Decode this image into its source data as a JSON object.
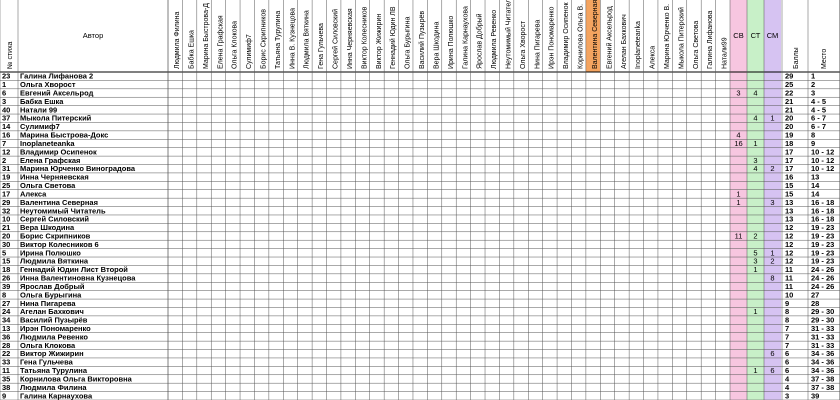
{
  "table": {
    "headers": {
      "num": "№ стиха",
      "author": "Автор",
      "sv": "СВ",
      "st": "СТ",
      "sm": "СМ",
      "points": "Баллы",
      "place": "Место"
    },
    "judges": [
      "Людмила Филина",
      "Бабка Ешка",
      "Марина Быстрова-Д",
      "Елена Графская",
      "Ольга Клокова",
      "Сулимиф7",
      "Борис Скрипников",
      "Татьяна Турулина",
      "Инна В. Кузнецова",
      "Людмила Вяткина",
      "Гена Гульчева",
      "Сергей Силовский",
      "Инна Черняевская",
      "Виктор Колесников",
      "Виктор Жижирин",
      "Геннадий Юдин ЛВ",
      "Ольга Бурыгина",
      "Василий Пузырёв",
      "Вера Шкодина",
      "Ирина Полюшко",
      "Галина Карнаухова",
      "Ярослав Добрый",
      "Людмила Ревенко",
      "Неутомимый Читатель",
      "Ольга Хворост",
      "Нина Пигарева",
      "Ирэн Пономаренко",
      "Владимир Осипенок",
      "Корнилова Ольга В.",
      "Валентина Северная",
      "Евгений Аксельрод",
      "Агелан Бахкович",
      "Inoplaneteanka",
      "Алекса",
      "Марина Юрченко В.",
      "Мыкола Питерский",
      "Ольга Светова",
      "Галина Лифанова",
      "Натали99"
    ],
    "rows": [
      {
        "num": 23,
        "author": "Галина Лифанова 2",
        "sv": null,
        "st": null,
        "sm": null,
        "points": 29,
        "place": "1"
      },
      {
        "num": 1,
        "author": "Ольга Хворост",
        "sv": null,
        "st": null,
        "sm": null,
        "points": 25,
        "place": "2"
      },
      {
        "num": 6,
        "author": "Евгений Аксельрод",
        "sv": 3,
        "st": 4,
        "sm": null,
        "points": 22,
        "place": "3"
      },
      {
        "num": 3,
        "author": "Бабка Ешка",
        "sv": null,
        "st": null,
        "sm": null,
        "points": 21,
        "place": "4 - 5"
      },
      {
        "num": 40,
        "author": "Натали 99",
        "sv": null,
        "st": null,
        "sm": null,
        "points": 21,
        "place": "4 - 5"
      },
      {
        "num": 37,
        "author": "Мыкола Питерский",
        "sv": null,
        "st": 4,
        "sm": 1,
        "points": 20,
        "place": "6 - 7"
      },
      {
        "num": 14,
        "author": "Сулимиф7",
        "sv": null,
        "st": null,
        "sm": null,
        "points": 20,
        "place": "6 - 7"
      },
      {
        "num": 16,
        "author": "Марина Быстрова-Докс",
        "sv": 4,
        "st": null,
        "sm": null,
        "points": 19,
        "place": "8"
      },
      {
        "num": 7,
        "author": "Inoplaneteanka",
        "sv": 16,
        "st": 1,
        "sm": null,
        "points": 18,
        "place": "9"
      },
      {
        "num": 12,
        "author": "Владимир Осипенок",
        "sv": null,
        "st": null,
        "sm": null,
        "points": 17,
        "place": "10 - 12"
      },
      {
        "num": 2,
        "author": "Елена Графская",
        "sv": null,
        "st": 3,
        "sm": null,
        "points": 17,
        "place": "10 - 12"
      },
      {
        "num": 31,
        "author": "Марина Юрченко Виноградова",
        "sv": null,
        "st": 4,
        "sm": 2,
        "points": 17,
        "place": "10 - 12"
      },
      {
        "num": 19,
        "author": "Инна Черняевская",
        "sv": null,
        "st": null,
        "sm": null,
        "points": 16,
        "place": "13"
      },
      {
        "num": 25,
        "author": "Ольга Светова",
        "sv": null,
        "st": null,
        "sm": null,
        "points": 15,
        "place": "14"
      },
      {
        "num": 17,
        "author": "Алекса",
        "sv": 1,
        "st": null,
        "sm": null,
        "points": 15,
        "place": "14"
      },
      {
        "num": 29,
        "author": "Валентина Северная",
        "sv": 1,
        "st": null,
        "sm": 3,
        "points": 13,
        "place": "16 - 18"
      },
      {
        "num": 32,
        "author": "Неутомимый Читатель",
        "sv": null,
        "st": null,
        "sm": null,
        "points": 13,
        "place": "16 - 18"
      },
      {
        "num": 10,
        "author": "Сергей Силовский",
        "sv": null,
        "st": null,
        "sm": null,
        "points": 13,
        "place": "16 - 18"
      },
      {
        "num": 21,
        "author": "Вера Шкодина",
        "sv": null,
        "st": null,
        "sm": null,
        "points": 12,
        "place": "19 - 23"
      },
      {
        "num": 20,
        "author": "Борис Скрипников",
        "sv": 11,
        "st": 2,
        "sm": null,
        "points": 12,
        "place": "19 - 23"
      },
      {
        "num": 30,
        "author": "Виктор Колесников 6",
        "sv": null,
        "st": null,
        "sm": null,
        "points": 12,
        "place": "19 - 23"
      },
      {
        "num": 5,
        "author": "Ирина Полюшко",
        "sv": null,
        "st": 5,
        "sm": 1,
        "points": 12,
        "place": "19 - 23"
      },
      {
        "num": 15,
        "author": "Людмила Вяткина",
        "sv": null,
        "st": 3,
        "sm": 2,
        "points": 12,
        "place": "19 - 23"
      },
      {
        "num": 18,
        "author": "Геннадий Юдин Лист Второй",
        "sv": null,
        "st": 1,
        "sm": null,
        "points": 11,
        "place": "24 - 26"
      },
      {
        "num": 26,
        "author": "Инна Валентиновна Кузнецова",
        "sv": null,
        "st": null,
        "sm": 8,
        "points": 11,
        "place": "24 - 26"
      },
      {
        "num": 39,
        "author": "Ярослав Добрый",
        "sv": null,
        "st": null,
        "sm": null,
        "points": 11,
        "place": "24 - 26"
      },
      {
        "num": 8,
        "author": "Ольга Бурыгина",
        "sv": null,
        "st": null,
        "sm": null,
        "points": 10,
        "place": "27"
      },
      {
        "num": 27,
        "author": "Нина Пигарева",
        "sv": null,
        "st": null,
        "sm": null,
        "points": 9,
        "place": "28"
      },
      {
        "num": 24,
        "author": "Агелан Бахкович",
        "sv": null,
        "st": 1,
        "sm": null,
        "points": 8,
        "place": "29 - 30"
      },
      {
        "num": 34,
        "author": "Василий Пузырёв",
        "sv": null,
        "st": null,
        "sm": null,
        "points": 8,
        "place": "29 - 30"
      },
      {
        "num": 13,
        "author": "Ирэн Пономаренко",
        "sv": null,
        "st": null,
        "sm": null,
        "points": 7,
        "place": "31 - 33"
      },
      {
        "num": 36,
        "author": "Людмила Ревенко",
        "sv": null,
        "st": null,
        "sm": null,
        "points": 7,
        "place": "31 - 33"
      },
      {
        "num": 28,
        "author": "Ольга Клокова",
        "sv": null,
        "st": null,
        "sm": null,
        "points": 7,
        "place": "31 - 33"
      },
      {
        "num": 22,
        "author": "Виктор Жижирин",
        "sv": null,
        "st": null,
        "sm": 6,
        "points": 6,
        "place": "34 - 36"
      },
      {
        "num": 33,
        "author": "Гена Гульчева",
        "sv": null,
        "st": null,
        "sm": null,
        "points": 6,
        "place": "34 - 36"
      },
      {
        "num": 11,
        "author": "Татьяна Турулина",
        "sv": null,
        "st": 1,
        "sm": 6,
        "points": 6,
        "place": "34 - 36"
      },
      {
        "num": 35,
        "author": "Корнилова Ольга Викторовна",
        "sv": null,
        "st": null,
        "sm": null,
        "points": 4,
        "place": "37 - 38"
      },
      {
        "num": 38,
        "author": "Людмила Филина",
        "sv": null,
        "st": null,
        "sm": null,
        "points": 4,
        "place": "37 - 38"
      },
      {
        "num": 9,
        "author": "Галина Карнаухова",
        "sv": null,
        "st": null,
        "sm": null,
        "points": 3,
        "place": "39"
      }
    ]
  }
}
